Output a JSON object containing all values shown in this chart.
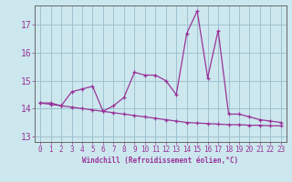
{
  "xlabel": "Windchill (Refroidissement éolien,°C)",
  "x_values": [
    0,
    1,
    2,
    3,
    4,
    5,
    6,
    7,
    8,
    9,
    10,
    11,
    12,
    13,
    14,
    15,
    16,
    17,
    18,
    19,
    20,
    21,
    22,
    23
  ],
  "line1": [
    14.2,
    14.2,
    14.1,
    14.6,
    14.7,
    14.8,
    13.9,
    14.1,
    14.4,
    15.3,
    15.2,
    15.2,
    15.0,
    14.5,
    16.7,
    17.5,
    15.1,
    16.8,
    13.8,
    13.8,
    13.7,
    13.6,
    13.55,
    13.5
  ],
  "line2": [
    14.2,
    14.15,
    14.1,
    14.05,
    14.0,
    13.95,
    13.9,
    13.85,
    13.8,
    13.75,
    13.7,
    13.65,
    13.6,
    13.55,
    13.5,
    13.48,
    13.46,
    13.44,
    13.42,
    13.42,
    13.4,
    13.4,
    13.38,
    13.38
  ],
  "line_color": "#993399",
  "bg_color": "#cce8ee",
  "grid_color": "#99bbcc",
  "ylim": [
    12.8,
    17.7
  ],
  "xlim": [
    -0.5,
    23.5
  ],
  "yticks": [
    13,
    14,
    15,
    16,
    17
  ],
  "xticks": [
    0,
    1,
    2,
    3,
    4,
    5,
    6,
    7,
    8,
    9,
    10,
    11,
    12,
    13,
    14,
    15,
    16,
    17,
    18,
    19,
    20,
    21,
    22,
    23
  ],
  "tick_fontsize": 5.5,
  "xlabel_fontsize": 5.5
}
